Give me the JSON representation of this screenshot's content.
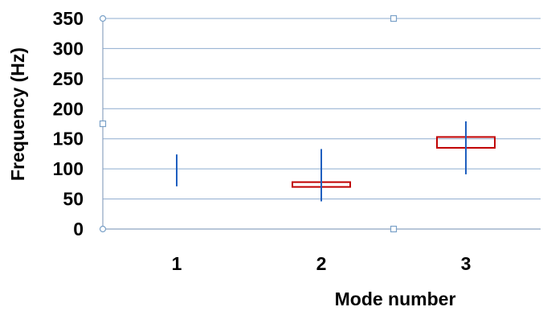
{
  "chart_data": {
    "type": "box",
    "xlabel": "Mode number",
    "ylabel": "Frequency (Hz)",
    "ylim": [
      0,
      350
    ],
    "yticks": [
      0,
      50,
      100,
      150,
      200,
      250,
      300,
      350
    ],
    "categories": [
      "1",
      "2",
      "3"
    ],
    "series": [
      {
        "values": [
          {
            "whisker_low": 71,
            "whisker_high": 124
          },
          {
            "whisker_low": 46,
            "whisker_high": 133,
            "box_low": 70,
            "box_high": 78
          },
          {
            "whisker_low": 91,
            "whisker_high": 179,
            "box_low": 135,
            "box_high": 153
          }
        ]
      }
    ],
    "grid": true,
    "colors": {
      "whisker": "#1f5fbf",
      "box": "#c00000",
      "gridline": "#8eaccf",
      "axis": "#8ea4c0",
      "handle": "#7aa1c8"
    }
  }
}
